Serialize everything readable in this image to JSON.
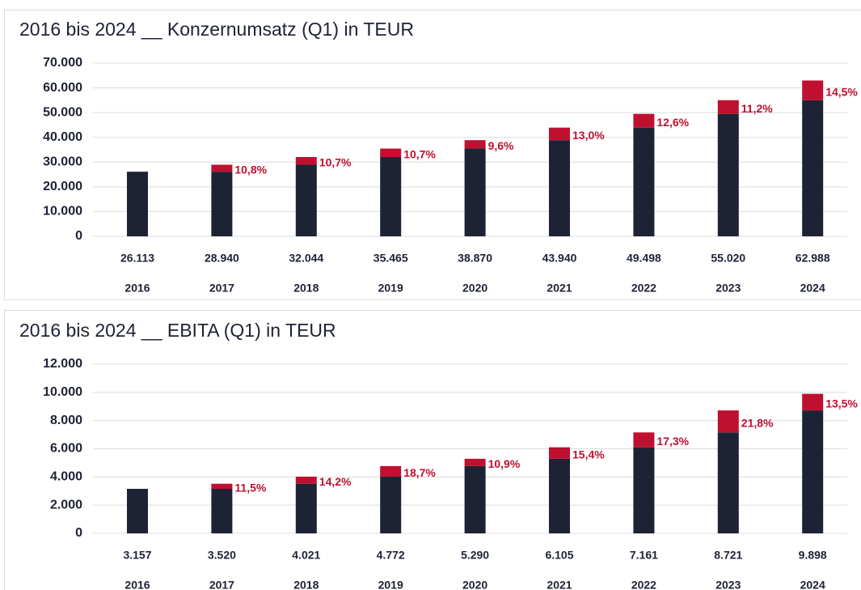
{
  "chart_data": [
    {
      "type": "bar",
      "title": "2016 bis 2024 __ Konzernumsatz (Q1) in TEUR",
      "categories": [
        "2016",
        "2017",
        "2018",
        "2019",
        "2020",
        "2021",
        "2022",
        "2023",
        "2024"
      ],
      "values": [
        26113,
        28940,
        32044,
        35465,
        38870,
        43940,
        49498,
        55020,
        62988
      ],
      "value_labels": [
        "26.113",
        "28.940",
        "32.044",
        "35.465",
        "38.870",
        "43.940",
        "49.498",
        "55.020",
        "62.988"
      ],
      "growth_labels": [
        null,
        "10,8%",
        "10,7%",
        "10,7%",
        "9,6%",
        "13,0%",
        "12,6%",
        "11,2%",
        "14,5%"
      ],
      "color": "#1e2235",
      "increase_color": "#c0102f",
      "ylim": [
        0,
        70000
      ],
      "yticks": [
        0,
        {
          "value": 10000,
          "label": "10.000"
        },
        {
          "value": 20000,
          "label": "20.000"
        },
        {
          "value": 30000,
          "label": "30.000"
        },
        {
          "value": 40000,
          "label": "40.000"
        },
        {
          "value": 50000,
          "label": "50.000"
        },
        {
          "value": 60000,
          "label": "60.000"
        },
        {
          "value": 70000,
          "label": "70.000"
        }
      ],
      "grid": true
    },
    {
      "type": "bar",
      "title": "2016 bis 2024 __ EBITA (Q1) in TEUR",
      "categories": [
        "2016",
        "2017",
        "2018",
        "2019",
        "2020",
        "2021",
        "2022",
        "2023",
        "2024"
      ],
      "values": [
        3157,
        3520,
        4021,
        4772,
        5290,
        6105,
        7161,
        8721,
        9898
      ],
      "value_labels": [
        "3.157",
        "3.520",
        "4.021",
        "4.772",
        "5.290",
        "6.105",
        "7.161",
        "8.721",
        "9.898"
      ],
      "growth_labels": [
        null,
        "11,5%",
        "14,2%",
        "18,7%",
        "10,9%",
        "15,4%",
        "17,3%",
        "21,8%",
        "13,5%"
      ],
      "color": "#1e2235",
      "increase_color": "#c0102f",
      "ylim": [
        0,
        12000
      ],
      "yticks": [
        0,
        {
          "value": 2000,
          "label": "2.000"
        },
        {
          "value": 4000,
          "label": "4.000"
        },
        {
          "value": 6000,
          "label": "6.000"
        },
        {
          "value": 8000,
          "label": "8.000"
        },
        {
          "value": 10000,
          "label": "10.000"
        },
        {
          "value": 12000,
          "label": "12.000"
        }
      ],
      "grid": true
    }
  ]
}
